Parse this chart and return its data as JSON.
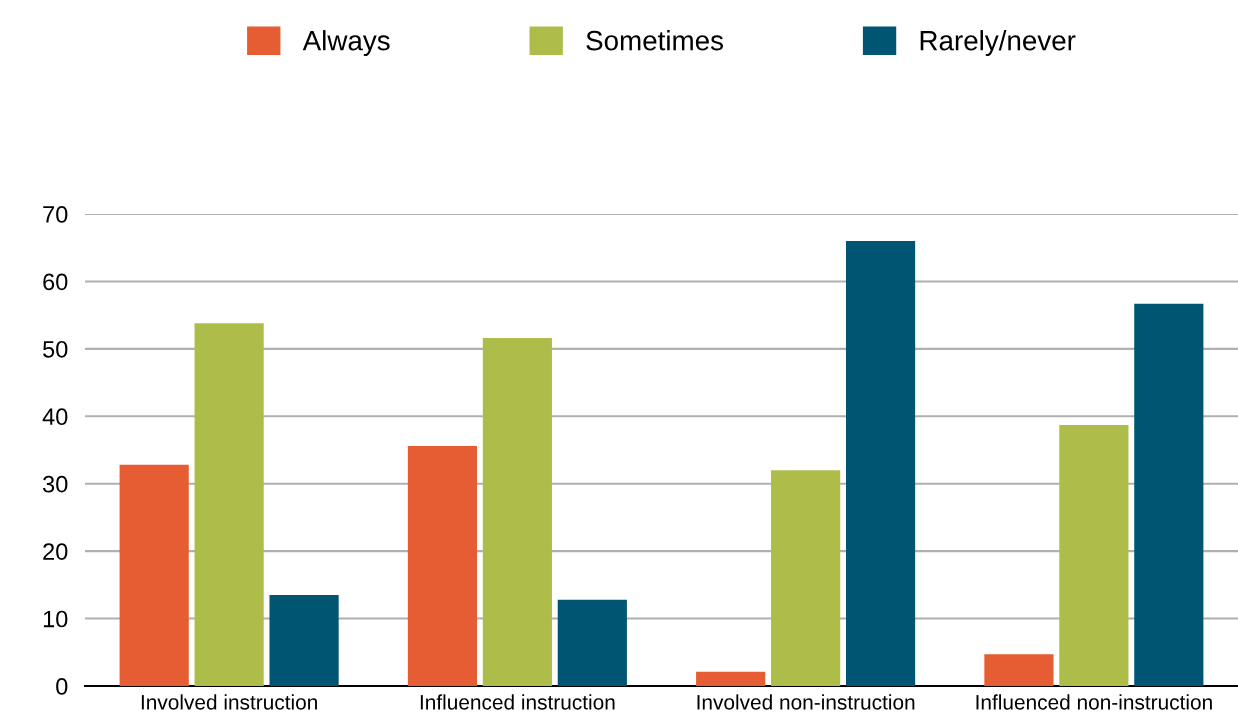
{
  "chart_data": {
    "type": "bar",
    "categories": [
      "Involved instruction",
      "Influenced instruction",
      "Involved non-instruction",
      "Influenced non-instruction"
    ],
    "series": [
      {
        "name": "Always",
        "color": "#e65c33",
        "values": [
          32.8,
          35.6,
          2.1,
          4.7
        ]
      },
      {
        "name": "Sometimes",
        "color": "#aebd4a",
        "values": [
          53.8,
          51.6,
          32.0,
          38.7
        ]
      },
      {
        "name": "Rarely/never",
        "color": "#005672",
        "values": [
          13.5,
          12.8,
          66.0,
          56.7
        ]
      }
    ],
    "ylim": [
      0,
      70
    ],
    "yticks": [
      0,
      10,
      20,
      30,
      40,
      50,
      60,
      70
    ],
    "grid": "y",
    "legend": "top"
  }
}
